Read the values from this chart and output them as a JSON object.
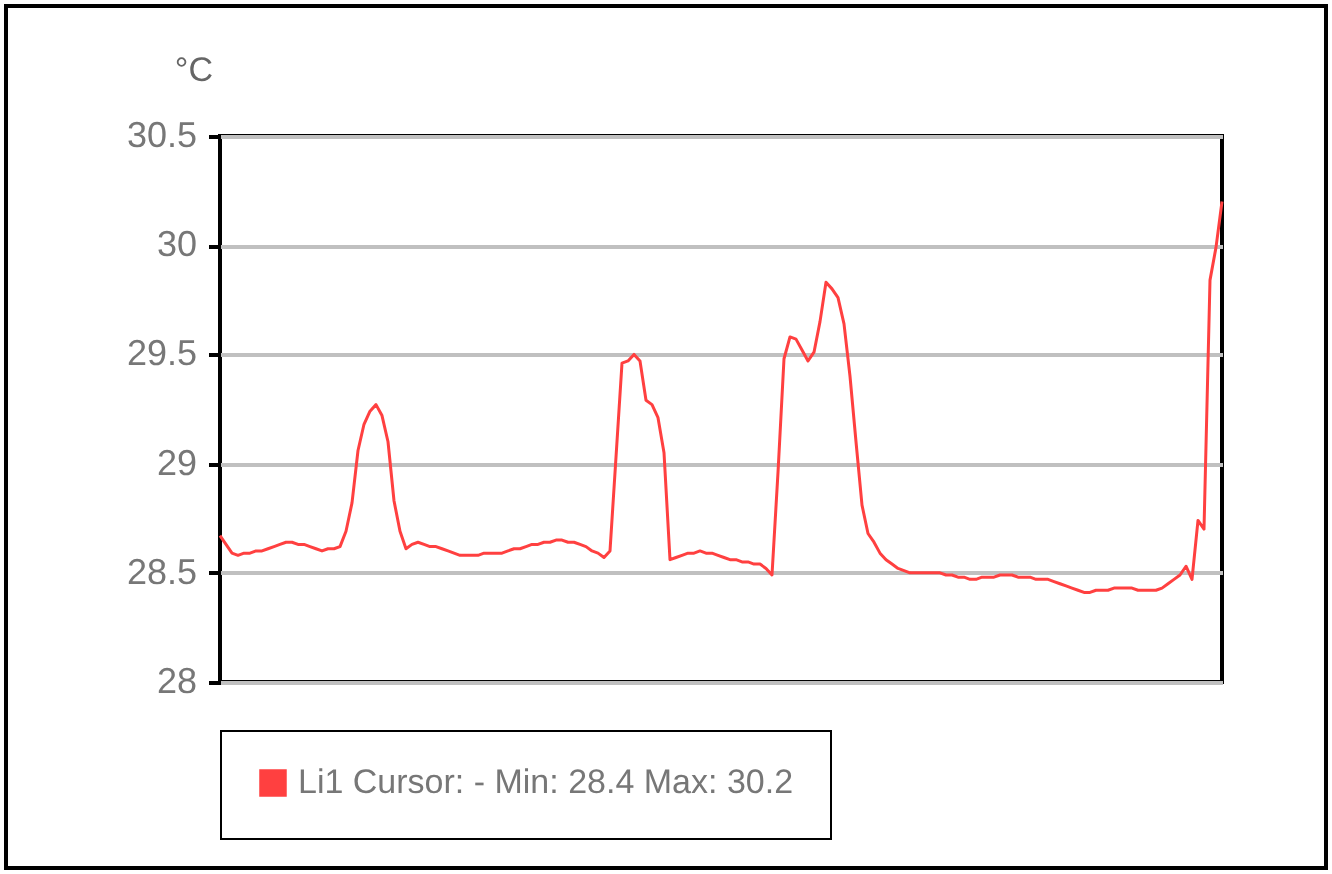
{
  "chart_data": {
    "type": "line",
    "ylabel": "°C",
    "categories": [
      null,
      null,
      null,
      null,
      null,
      null,
      null,
      null,
      null,
      null,
      null,
      null,
      null,
      null,
      null,
      null,
      null,
      null,
      null,
      null,
      null,
      null,
      null,
      null,
      null,
      null,
      null,
      null,
      null,
      null,
      null,
      null,
      null,
      null,
      null,
      null,
      null,
      null,
      null,
      null,
      null,
      null,
      null,
      null,
      null,
      null,
      null,
      null,
      null,
      null,
      null,
      null,
      null,
      null,
      null,
      null,
      null,
      null,
      null,
      null,
      null,
      null,
      null,
      null,
      null,
      null,
      null,
      null,
      null,
      null,
      null,
      null,
      null,
      null,
      null,
      null,
      null,
      null,
      null,
      null,
      null,
      null,
      null,
      null,
      null,
      null,
      null,
      null,
      null,
      null,
      null,
      null,
      null,
      null,
      null,
      null,
      null,
      null,
      null,
      null,
      null,
      null,
      null,
      null,
      null,
      null,
      null,
      null,
      null,
      null,
      null,
      null,
      null,
      null,
      null,
      null,
      null,
      null,
      null,
      null,
      null,
      null,
      null,
      null,
      null,
      null,
      null,
      null,
      null,
      null,
      null,
      null,
      null,
      null,
      null,
      null,
      null,
      null,
      null,
      null,
      null,
      null,
      null,
      null,
      null,
      null,
      null,
      null,
      null,
      null,
      null,
      null,
      null,
      null,
      null,
      null,
      null,
      null,
      null,
      null,
      null,
      null,
      null,
      null,
      null,
      null,
      null,
      null
    ],
    "series": [
      {
        "name": "Li1 Cursor: - Min: 28.4 Max: 30.2",
        "color": "#ff4040",
        "values": [
          28.67,
          28.63,
          28.59,
          28.58,
          28.59,
          28.59,
          28.6,
          28.6,
          28.61,
          28.62,
          28.63,
          28.64,
          28.64,
          28.63,
          28.63,
          28.62,
          28.61,
          28.6,
          28.61,
          28.61,
          28.62,
          28.69,
          28.82,
          29.06,
          29.18,
          29.24,
          29.27,
          29.22,
          29.1,
          28.83,
          28.69,
          28.61,
          28.63,
          28.64,
          28.63,
          28.62,
          28.62,
          28.61,
          28.6,
          28.59,
          28.58,
          28.58,
          28.58,
          28.58,
          28.59,
          28.59,
          28.59,
          28.59,
          28.6,
          28.61,
          28.61,
          28.62,
          28.63,
          28.63,
          28.64,
          28.64,
          28.65,
          28.65,
          28.64,
          28.64,
          28.63,
          28.62,
          28.6,
          28.59,
          28.57,
          28.6,
          29.03,
          29.46,
          29.47,
          29.5,
          29.47,
          29.29,
          29.27,
          29.21,
          29.05,
          28.56,
          28.57,
          28.58,
          28.59,
          28.59,
          28.6,
          28.59,
          28.59,
          28.58,
          28.57,
          28.56,
          28.56,
          28.55,
          28.55,
          28.54,
          28.54,
          28.52,
          28.49,
          28.96,
          29.48,
          29.58,
          29.57,
          29.52,
          29.47,
          29.51,
          29.65,
          29.83,
          29.8,
          29.76,
          29.64,
          29.4,
          29.1,
          28.81,
          28.68,
          28.64,
          28.59,
          28.56,
          28.54,
          28.52,
          28.51,
          28.5,
          28.5,
          28.5,
          28.5,
          28.5,
          28.5,
          28.49,
          28.49,
          28.48,
          28.48,
          28.47,
          28.47,
          28.48,
          28.48,
          28.48,
          28.49,
          28.49,
          28.49,
          28.48,
          28.48,
          28.48,
          28.47,
          28.47,
          28.47,
          28.46,
          28.45,
          28.44,
          28.43,
          28.42,
          28.41,
          28.41,
          28.42,
          28.42,
          28.42,
          28.43,
          28.43,
          28.43,
          28.43,
          28.42,
          28.42,
          28.42,
          28.42,
          28.43,
          28.45,
          28.47,
          28.49,
          28.53,
          28.47,
          28.74,
          28.7,
          29.84,
          29.99,
          30.2
        ]
      }
    ],
    "ylim": [
      28,
      30.5
    ],
    "yticks": [
      28,
      28.5,
      29,
      29.5,
      30,
      30.5
    ],
    "grid": "y",
    "legend": "bottom",
    "tick_labels": "y",
    "marker": "none",
    "line_style": "solid"
  }
}
